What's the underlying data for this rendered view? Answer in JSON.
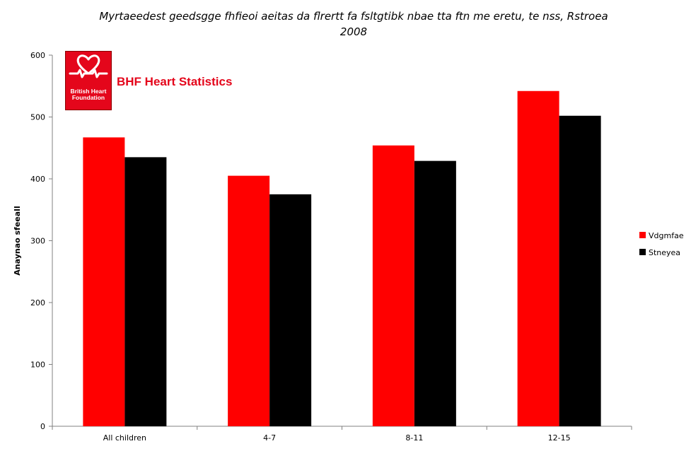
{
  "chart_data": {
    "type": "bar",
    "title": "Myrtaeedest geedsgge fhfieoi aeitas da flrertt fa fsltgtibk nbae tta ftn me eretu, te nss, Rstroea 2008",
    "title_lines": [
      "Myrtaeedest geedsgge fhfieoi aeitas da flrertt fa fsltgtibk nbae tta ftn me eretu, te nss, Rstroea",
      "2008"
    ],
    "ylabel": "Anaynao sfeeall",
    "xlabel": "",
    "ylim": [
      0,
      600
    ],
    "yticks": [
      0,
      100,
      200,
      300,
      400,
      500,
      600
    ],
    "categories": [
      "All children",
      "4-7",
      "8-11",
      "12-15"
    ],
    "series": [
      {
        "name": "Vdgmfae",
        "color": "#ff0000",
        "values": [
          467,
          405,
          454,
          542
        ]
      },
      {
        "name": "Stneyea",
        "color": "#000000",
        "values": [
          435,
          375,
          429,
          502
        ]
      }
    ],
    "legend_position": "right",
    "grid": false
  },
  "logo": {
    "text": "British Heart Foundation",
    "text_lines": [
      "British Heart",
      "Foundation"
    ],
    "brand_label": "BHF Heart Statistics",
    "icon": "heart-icon",
    "color": "#e4061b"
  }
}
